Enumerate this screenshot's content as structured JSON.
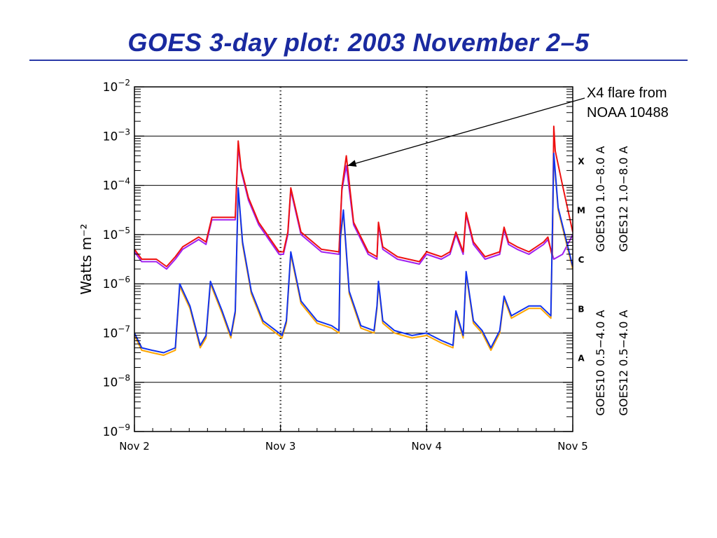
{
  "slide": {
    "title": "GOES 3-day plot: 2003 November 2–5"
  },
  "annotation": {
    "line1": "X4 flare from",
    "line2": "NOAA 10488"
  },
  "colors": {
    "goes10_long": "#a020f0",
    "goes12_long": "#ee1111",
    "goes10_short": "#ffa500",
    "goes12_short": "#1133ee",
    "title": "#1a2aa0"
  },
  "chart_data": {
    "type": "line",
    "scale": "log",
    "xlim": [
      0,
      3
    ],
    "ylim": [
      -9,
      -2
    ],
    "ylabel": "Watts m⁻²",
    "x_tick_labels": [
      "Nov 2",
      "Nov 3",
      "Nov 4",
      "Nov 5"
    ],
    "x_ticks": [
      0,
      1,
      2,
      3
    ],
    "y_ticks": [
      {
        "exp": -2,
        "base": "10",
        "sup": "−2"
      },
      {
        "exp": -3,
        "base": "10",
        "sup": "−3"
      },
      {
        "exp": -4,
        "base": "10",
        "sup": "−4"
      },
      {
        "exp": -5,
        "base": "10",
        "sup": "−5"
      },
      {
        "exp": -6,
        "base": "10",
        "sup": "−6"
      },
      {
        "exp": -7,
        "base": "10",
        "sup": "−7"
      },
      {
        "exp": -8,
        "base": "10",
        "sup": "−8"
      },
      {
        "exp": -9,
        "base": "10",
        "sup": "−9"
      }
    ],
    "flare_classes": [
      {
        "label": "X",
        "exp": -3.5
      },
      {
        "label": "M",
        "exp": -4.5
      },
      {
        "label": "C",
        "exp": -5.5
      },
      {
        "label": "B",
        "exp": -6.5
      },
      {
        "label": "A",
        "exp": -7.5
      }
    ],
    "class_gridlines": [
      -3,
      -4,
      -5,
      -6,
      -7,
      -8
    ],
    "right_labels": [
      {
        "text": "GOES10 1.0−8.0 A",
        "color": "#a020f0"
      },
      {
        "text": "GOES12 1.0−8.0 A",
        "color": "#ee1111"
      },
      {
        "text": "GOES10 0.5−4.0 A",
        "color": "#ffa500"
      },
      {
        "text": "GOES12 0.5−4.0 A",
        "color": "#1133ee"
      }
    ],
    "annotation_target": {
      "x": 1.44,
      "exp": -3.6
    },
    "series": [
      {
        "name": "GOES10 1.0−8.0 A",
        "color": "#a020f0",
        "x": [
          0,
          0.05,
          0.15,
          0.22,
          0.28,
          0.33,
          0.44,
          0.49,
          0.53,
          0.69,
          0.71,
          0.73,
          0.78,
          0.85,
          0.99,
          1.02,
          1.05,
          1.07,
          1.14,
          1.28,
          1.4,
          1.42,
          1.45,
          1.5,
          1.6,
          1.66,
          1.67,
          1.7,
          1.8,
          1.95,
          2.0,
          2.1,
          2.16,
          2.2,
          2.25,
          2.27,
          2.32,
          2.4,
          2.5,
          2.53,
          2.56,
          2.62,
          2.7,
          2.8,
          2.83,
          2.87,
          2.93,
          3.0
        ],
        "y": [
          -5.35,
          -5.55,
          -5.55,
          -5.7,
          -5.5,
          -5.3,
          -5.1,
          -5.2,
          -4.7,
          -4.7,
          -3.2,
          -3.7,
          -4.3,
          -4.8,
          -5.4,
          -5.4,
          -5.0,
          -4.1,
          -5.0,
          -5.35,
          -5.4,
          -4.1,
          -3.6,
          -4.8,
          -5.4,
          -5.5,
          -4.8,
          -5.3,
          -5.5,
          -5.6,
          -5.4,
          -5.5,
          -5.4,
          -5.0,
          -5.4,
          -4.6,
          -5.2,
          -5.5,
          -5.4,
          -4.9,
          -5.2,
          -5.3,
          -5.4,
          -5.2,
          -5.1,
          -5.5,
          -5.4,
          -5.0
        ]
      },
      {
        "name": "GOES12 1.0−8.0 A",
        "color": "#ee1111",
        "x": [
          0,
          0.05,
          0.15,
          0.22,
          0.28,
          0.33,
          0.44,
          0.49,
          0.53,
          0.69,
          0.71,
          0.73,
          0.78,
          0.85,
          0.99,
          1.02,
          1.05,
          1.07,
          1.14,
          1.28,
          1.4,
          1.42,
          1.45,
          1.5,
          1.6,
          1.66,
          1.67,
          1.7,
          1.8,
          1.95,
          2.0,
          2.1,
          2.16,
          2.2,
          2.25,
          2.27,
          2.32,
          2.4,
          2.5,
          2.53,
          2.56,
          2.62,
          2.7,
          2.8,
          2.83,
          2.86,
          2.87,
          2.88,
          2.93,
          3.0
        ],
        "y": [
          -5.3,
          -5.5,
          -5.5,
          -5.65,
          -5.45,
          -5.25,
          -5.05,
          -5.15,
          -4.65,
          -4.65,
          -3.1,
          -3.65,
          -4.25,
          -4.75,
          -5.35,
          -5.35,
          -4.95,
          -4.05,
          -4.95,
          -5.3,
          -5.35,
          -4.05,
          -3.4,
          -4.75,
          -5.35,
          -5.45,
          -4.75,
          -5.25,
          -5.45,
          -5.55,
          -5.35,
          -5.45,
          -5.35,
          -4.95,
          -5.35,
          -4.55,
          -5.15,
          -5.45,
          -5.35,
          -4.85,
          -5.15,
          -5.25,
          -5.35,
          -5.15,
          -5.05,
          -5.45,
          -2.8,
          -3.3,
          -4.0,
          -4.95
        ]
      },
      {
        "name": "GOES10 0.5−4.0 A",
        "color": "#ffa500",
        "x": [
          0,
          0.05,
          0.12,
          0.2,
          0.28,
          0.31,
          0.38,
          0.45,
          0.49,
          0.52,
          0.6,
          0.66,
          0.69,
          0.71,
          0.74,
          0.8,
          0.88,
          0.99,
          1.01,
          1.04,
          1.07,
          1.14,
          1.25,
          1.35,
          1.4,
          1.41,
          1.43,
          1.47,
          1.55,
          1.64,
          1.66,
          1.67,
          1.7,
          1.78,
          1.9,
          2.0,
          2.1,
          2.18,
          2.2,
          2.25,
          2.27,
          2.32,
          2.38,
          2.44,
          2.5,
          2.53,
          2.58,
          2.7,
          2.78,
          2.85,
          2.87,
          2.9,
          3.0
        ],
        "y": [
          -7.05,
          -7.35,
          -7.4,
          -7.45,
          -7.35,
          -6.05,
          -6.5,
          -7.3,
          -7.1,
          -6.0,
          -6.6,
          -7.1,
          -6.6,
          -4.1,
          -5.2,
          -6.2,
          -6.8,
          -7.05,
          -7.1,
          -6.8,
          -5.4,
          -6.4,
          -6.8,
          -6.9,
          -7.0,
          -5.1,
          -4.55,
          -6.2,
          -6.9,
          -7.0,
          -6.5,
          -6.0,
          -6.8,
          -7.0,
          -7.1,
          -7.05,
          -7.2,
          -7.3,
          -6.6,
          -7.1,
          -5.8,
          -6.8,
          -7.0,
          -7.35,
          -7.0,
          -6.3,
          -6.7,
          -6.5,
          -6.5,
          -6.7,
          -3.4,
          -4.5,
          -5.7
        ]
      },
      {
        "name": "GOES12 0.5−4.0 A",
        "color": "#1133ee",
        "x": [
          0,
          0.05,
          0.12,
          0.2,
          0.28,
          0.31,
          0.38,
          0.45,
          0.49,
          0.52,
          0.6,
          0.66,
          0.69,
          0.71,
          0.74,
          0.8,
          0.88,
          0.99,
          1.01,
          1.04,
          1.07,
          1.14,
          1.25,
          1.35,
          1.4,
          1.41,
          1.43,
          1.47,
          1.55,
          1.64,
          1.66,
          1.67,
          1.7,
          1.78,
          1.9,
          2.0,
          2.1,
          2.18,
          2.2,
          2.25,
          2.27,
          2.32,
          2.38,
          2.44,
          2.5,
          2.53,
          2.58,
          2.7,
          2.78,
          2.85,
          2.87,
          2.9,
          3.0
        ],
        "y": [
          -7.0,
          -7.3,
          -7.35,
          -7.4,
          -7.3,
          -6.0,
          -6.45,
          -7.25,
          -7.05,
          -5.95,
          -6.55,
          -7.05,
          -6.55,
          -4.05,
          -5.15,
          -6.15,
          -6.75,
          -7.0,
          -7.05,
          -6.75,
          -5.35,
          -6.35,
          -6.75,
          -6.85,
          -6.95,
          -5.05,
          -4.5,
          -6.15,
          -6.85,
          -6.95,
          -6.45,
          -5.95,
          -6.75,
          -6.95,
          -7.05,
          -7.0,
          -7.15,
          -7.25,
          -6.55,
          -7.05,
          -5.75,
          -6.75,
          -6.95,
          -7.3,
          -6.95,
          -6.25,
          -6.65,
          -6.45,
          -6.45,
          -6.65,
          -3.35,
          -4.45,
          -5.65
        ]
      }
    ]
  }
}
